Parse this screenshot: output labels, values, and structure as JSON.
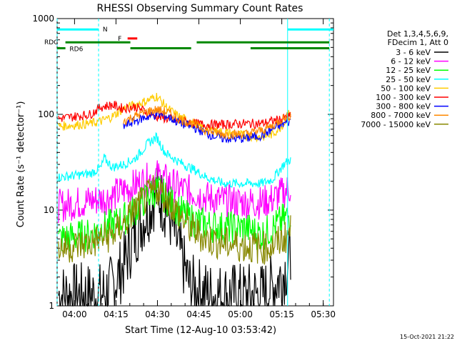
{
  "chart_data": {
    "type": "line",
    "title": "RHESSI Observing Summary Count Rates",
    "xlabel": "Start Time (12-Aug-10 03:53:42)",
    "ylabel": "Count Rate (s⁻¹ detector⁻¹)",
    "yscale": "log",
    "ylim": [
      1,
      1000
    ],
    "xlim_minutes": [
      0,
      100
    ],
    "x_ticks": [
      {
        "m": 6.3,
        "label": "04:00"
      },
      {
        "m": 21.3,
        "label": "04:15"
      },
      {
        "m": 36.3,
        "label": "04:30"
      },
      {
        "m": 51.3,
        "label": "04:45"
      },
      {
        "m": 66.3,
        "label": "05:00"
      },
      {
        "m": 81.3,
        "label": "05:15"
      },
      {
        "m": 96.3,
        "label": "05:30"
      }
    ],
    "y_tick_labels": [
      {
        "v": 1000,
        "label": "1000"
      },
      {
        "v": 100,
        "label": "100"
      },
      {
        "v": 10,
        "label": "10"
      },
      {
        "v": 1,
        "label": "1"
      }
    ],
    "legend_header": [
      "Det 1,3,4,5,6,9,",
      "FDecim 1, Att 0"
    ],
    "series": [
      {
        "name": "3 - 6 keV",
        "color": "#000000",
        "points": [
          [
            0.5,
            1.3
          ],
          [
            12,
            1.3
          ],
          [
            16,
            1.3
          ],
          [
            20,
            1.6
          ],
          [
            24,
            2.6
          ],
          [
            28,
            5.5
          ],
          [
            33,
            10
          ],
          [
            36,
            15
          ],
          [
            40,
            10
          ],
          [
            44,
            4
          ],
          [
            48,
            1.6
          ],
          [
            56,
            1.3
          ],
          [
            68,
            1.3
          ],
          [
            74,
            1.3
          ],
          [
            78,
            1.6
          ],
          [
            82,
            2.2
          ],
          [
            84.5,
            3.2
          ]
        ]
      },
      {
        "name": "6 - 12 keV",
        "color": "#ff00ff",
        "points": [
          [
            0.5,
            11
          ],
          [
            12,
            12.5
          ],
          [
            16,
            13
          ],
          [
            20,
            14
          ],
          [
            24,
            16
          ],
          [
            28,
            18
          ],
          [
            33,
            21
          ],
          [
            36,
            23
          ],
          [
            40,
            20
          ],
          [
            44,
            17
          ],
          [
            50,
            15
          ],
          [
            54,
            13.5
          ],
          [
            60,
            12.5
          ],
          [
            68,
            12
          ],
          [
            74,
            12
          ],
          [
            78,
            13
          ],
          [
            82,
            15.5
          ],
          [
            84.5,
            17
          ]
        ]
      },
      {
        "name": "12 - 25 keV",
        "color": "#00ff00",
        "points": [
          [
            0.5,
            5
          ],
          [
            12,
            5.5
          ],
          [
            16,
            6.5
          ],
          [
            20,
            7
          ],
          [
            24,
            8
          ],
          [
            28,
            10
          ],
          [
            33,
            14
          ],
          [
            36,
            16.5
          ],
          [
            40,
            13
          ],
          [
            44,
            10
          ],
          [
            48,
            8
          ],
          [
            54,
            7
          ],
          [
            60,
            6.5
          ],
          [
            68,
            6.5
          ],
          [
            74,
            5.5
          ],
          [
            78,
            6.5
          ],
          [
            82,
            8
          ],
          [
            84.5,
            9
          ]
        ]
      },
      {
        "name": "25 - 50 keV",
        "color": "#00ffff",
        "points": [
          [
            0.5,
            22
          ],
          [
            12,
            24
          ],
          [
            16,
            28
          ],
          [
            17,
            35
          ],
          [
            20,
            28
          ],
          [
            24,
            30
          ],
          [
            28,
            34
          ],
          [
            33,
            50
          ],
          [
            36,
            58
          ],
          [
            39,
            40
          ],
          [
            44,
            32
          ],
          [
            50,
            26
          ],
          [
            54,
            22
          ],
          [
            60,
            19
          ],
          [
            68,
            19
          ],
          [
            74,
            19
          ],
          [
            78,
            21
          ],
          [
            82,
            30
          ],
          [
            84.5,
            34
          ]
        ]
      },
      {
        "name": "50 - 100 keV",
        "color": "#ffcc00",
        "points": [
          [
            0.5,
            75
          ],
          [
            12,
            80
          ],
          [
            16,
            85
          ],
          [
            20,
            95
          ],
          [
            24,
            115
          ],
          [
            28,
            125
          ],
          [
            33,
            140
          ],
          [
            36,
            155
          ],
          [
            40,
            115
          ],
          [
            44,
            95
          ],
          [
            50,
            80
          ],
          [
            54,
            70
          ],
          [
            60,
            65
          ],
          [
            68,
            60
          ],
          [
            74,
            58
          ],
          [
            78,
            62
          ],
          [
            82,
            80
          ],
          [
            84.5,
            110
          ]
        ]
      },
      {
        "name": "100 - 300 keV",
        "color": "#ff0000",
        "points": [
          [
            0.5,
            90
          ],
          [
            12,
            100
          ],
          [
            16,
            120
          ],
          [
            20,
            125
          ],
          [
            24,
            115
          ],
          [
            28,
            120
          ],
          [
            33,
            105
          ],
          [
            36,
            95
          ],
          [
            40,
            90
          ],
          [
            44,
            85
          ],
          [
            50,
            80
          ],
          [
            54,
            78
          ],
          [
            60,
            78
          ],
          [
            68,
            80
          ],
          [
            74,
            80
          ],
          [
            78,
            85
          ],
          [
            82,
            90
          ],
          [
            84.5,
            95
          ]
        ]
      },
      {
        "name": "300 - 800 keV",
        "color": "#0000ff",
        "points": [
          [
            24,
            75
          ],
          [
            28,
            85
          ],
          [
            33,
            95
          ],
          [
            36,
            100
          ],
          [
            40,
            95
          ],
          [
            44,
            82
          ],
          [
            50,
            72
          ],
          [
            54,
            63
          ],
          [
            60,
            56
          ],
          [
            68,
            56
          ],
          [
            74,
            60
          ],
          [
            78,
            70
          ],
          [
            82,
            80
          ],
          [
            84.5,
            85
          ]
        ]
      },
      {
        "name": "800 - 7000 keV",
        "color": "#ff8800",
        "points": [
          [
            24,
            85
          ],
          [
            28,
            95
          ],
          [
            33,
            108
          ],
          [
            36,
            112
          ],
          [
            40,
            105
          ],
          [
            44,
            90
          ],
          [
            50,
            78
          ],
          [
            54,
            68
          ],
          [
            60,
            62
          ],
          [
            68,
            62
          ],
          [
            74,
            68
          ],
          [
            78,
            76
          ],
          [
            82,
            92
          ],
          [
            84.5,
            97
          ]
        ]
      },
      {
        "name": "7000 - 15000 keV",
        "color": "#888800",
        "points": [
          [
            0.5,
            4
          ],
          [
            12,
            4.5
          ],
          [
            16,
            5
          ],
          [
            20,
            5.5
          ],
          [
            24,
            7
          ],
          [
            28,
            10
          ],
          [
            33,
            14
          ],
          [
            36,
            17
          ],
          [
            40,
            13
          ],
          [
            44,
            9
          ],
          [
            48,
            6.5
          ],
          [
            54,
            5
          ],
          [
            60,
            4.5
          ],
          [
            68,
            4.2
          ],
          [
            74,
            4
          ],
          [
            78,
            4.2
          ],
          [
            82,
            5
          ],
          [
            84.5,
            6
          ]
        ]
      }
    ],
    "flag_bars": [
      {
        "label": "N",
        "color": "#00ffff",
        "level": 770,
        "segments": [
          [
            0,
            15
          ],
          [
            83.4,
            100
          ]
        ]
      },
      {
        "label": "F",
        "color": "#ff0000",
        "level": 620,
        "segments": [
          [
            25.5,
            29
          ]
        ]
      },
      {
        "label": "RDC",
        "color": "#008800",
        "level": 565,
        "segments": [
          [
            3,
            26.5
          ],
          [
            50.5,
            98.5
          ]
        ]
      },
      {
        "label": "RD6",
        "color": "#008800",
        "level": 490,
        "segments": [
          [
            0,
            3
          ],
          [
            26.5,
            48.5
          ],
          [
            70,
            98.5
          ]
        ]
      }
    ],
    "cyan_dashed_lines_minutes": [
      0,
      15,
      98.5
    ],
    "cyan_solid_lines_minutes": [
      83.4
    ],
    "grid": false,
    "legend_position": "right-outside"
  },
  "footer_date": "15-Oct-2021 21:22"
}
